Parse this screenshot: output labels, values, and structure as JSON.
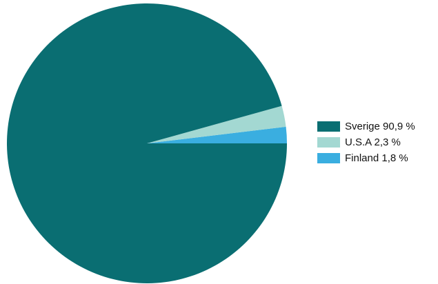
{
  "chart_data": {
    "type": "pie",
    "slices": [
      {
        "label": "Sverige 90,9 %",
        "value": 90.9,
        "color": "#0a6e72"
      },
      {
        "label": "U.S.A 2,3 %",
        "value": 2.3,
        "color": "#a3d8d2"
      },
      {
        "label": "Finland 1,8 %",
        "value": 1.8,
        "color": "#3aaee0"
      }
    ],
    "legend_position": "right"
  }
}
